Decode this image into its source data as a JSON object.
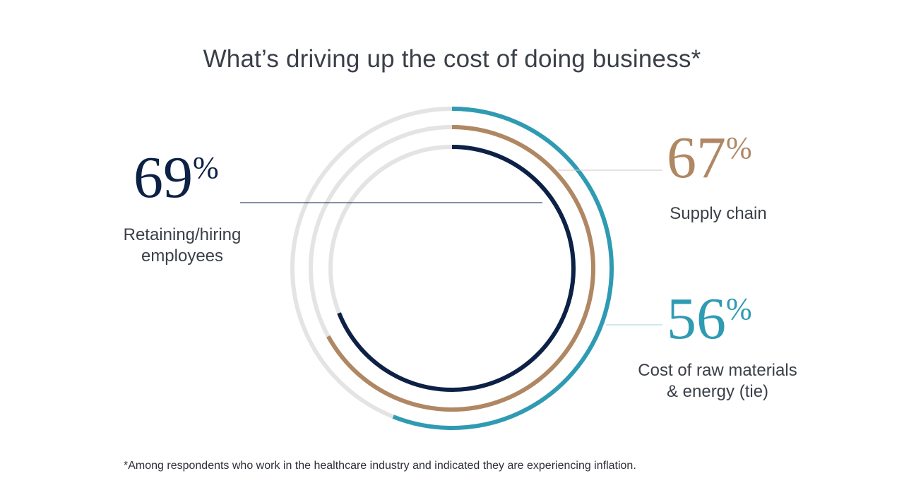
{
  "title": "What’s driving up the cost of doing business*",
  "footnote": "*Among respondents who work in the healthcare industry and indicated they are experiencing inflation.",
  "percent_symbol": "%",
  "colors": {
    "track": "#e4e4e4",
    "navy": "#0c2145",
    "tan": "#b08763",
    "teal": "#2f9bb3",
    "leader": "#cfc6bc"
  },
  "chart_data": {
    "type": "radial-bar",
    "title": "What’s driving up the cost of doing business*",
    "unit": "%",
    "max": 100,
    "series": [
      {
        "name": "Retaining/hiring employees",
        "value": 69,
        "display": "69",
        "color": "#0c2145",
        "label_lines": [
          "Retaining/hiring",
          "employees"
        ]
      },
      {
        "name": "Supply chain",
        "value": 67,
        "display": "67",
        "color": "#b08763",
        "label_lines": [
          "Supply chain"
        ]
      },
      {
        "name": "Cost of raw materials & energy (tie)",
        "value": 56,
        "display": "56",
        "color": "#2f9bb3",
        "label_lines": [
          "Cost of raw materials",
          "& energy (tie)"
        ]
      }
    ]
  }
}
